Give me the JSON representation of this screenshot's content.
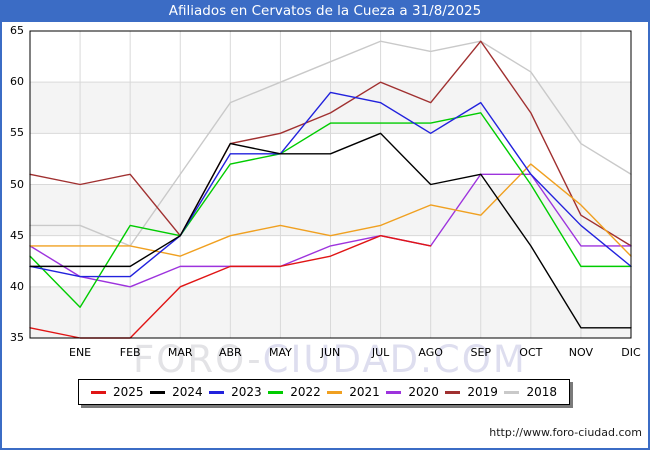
{
  "header": {
    "title": "Afiliados en Cervatos de la Cueza a 31/8/2025"
  },
  "watermark": {
    "part1": "FORO-",
    "part2": "CIUDAD.COM"
  },
  "footer": {
    "url": "http://www.foro-ciudad.com"
  },
  "colors": {
    "frame_blue": "#3b6cc5",
    "grid": "#d9d9d9",
    "band_shade": "#f4f4f4",
    "axis": "#000000"
  },
  "chart_data": {
    "type": "line",
    "title": "Afiliados en Cervatos de la Cueza a 31/8/2025",
    "xlabel": "",
    "ylabel": "",
    "ylim": [
      35,
      65
    ],
    "y_ticks": [
      65,
      60,
      55,
      50,
      45,
      40,
      35
    ],
    "grid": true,
    "shaded_bands": [
      [
        35,
        40
      ],
      [
        45,
        50
      ],
      [
        55,
        60
      ]
    ],
    "legend_position": "bottom",
    "categories": [
      "ENE",
      "FEB",
      "MAR",
      "ABR",
      "MAY",
      "JUN",
      "JUL",
      "AGO",
      "SEP",
      "OCT",
      "NOV",
      "DIC"
    ],
    "x_note": "index 0 of each series is the December value of the previous year drawn at the left plot edge; indices 1-12 are ENE-DIC",
    "series": [
      {
        "name": "2025",
        "color": "#e01515",
        "values": [
          36,
          35,
          35,
          40,
          42,
          42,
          43,
          45,
          44,
          null,
          null,
          null,
          null
        ]
      },
      {
        "name": "2024",
        "color": "#000000",
        "values": [
          42,
          42,
          42,
          45,
          54,
          53,
          53,
          55,
          50,
          51,
          44,
          36,
          36
        ]
      },
      {
        "name": "2023",
        "color": "#2222dd",
        "values": [
          42,
          41,
          41,
          45,
          53,
          53,
          59,
          58,
          55,
          58,
          51,
          46,
          42
        ]
      },
      {
        "name": "2022",
        "color": "#00cc00",
        "values": [
          43,
          38,
          46,
          45,
          52,
          53,
          56,
          56,
          56,
          57,
          50,
          42,
          42
        ]
      },
      {
        "name": "2021",
        "color": "#f0a020",
        "values": [
          44,
          44,
          44,
          43,
          45,
          46,
          45,
          46,
          48,
          47,
          52,
          48,
          43
        ]
      },
      {
        "name": "2020",
        "color": "#9d33dd",
        "values": [
          44,
          41,
          40,
          42,
          42,
          42,
          44,
          45,
          44,
          51,
          51,
          44,
          44
        ]
      },
      {
        "name": "2019",
        "color": "#a03030",
        "values": [
          51,
          50,
          51,
          45,
          54,
          55,
          57,
          60,
          58,
          64,
          57,
          47,
          44
        ]
      },
      {
        "name": "2018",
        "color": "#c9c9c9",
        "values": [
          46,
          46,
          44,
          51,
          58,
          60,
          62,
          64,
          63,
          64,
          61,
          54,
          51
        ]
      }
    ]
  }
}
